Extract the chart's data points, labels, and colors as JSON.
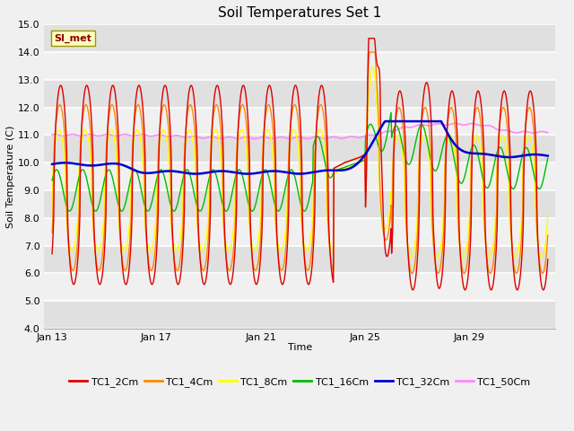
{
  "title": "Soil Temperatures Set 1",
  "xlabel": "Time",
  "ylabel": "Soil Temperature (C)",
  "ylim": [
    4.0,
    15.0
  ],
  "yticks": [
    4.0,
    5.0,
    6.0,
    7.0,
    8.0,
    9.0,
    10.0,
    11.0,
    12.0,
    13.0,
    14.0,
    15.0
  ],
  "bg_color": "#f0f0f0",
  "plot_bg_color": "#f0f0f0",
  "series_colors": {
    "TC1_2Cm": "#dd0000",
    "TC1_4Cm": "#ff8800",
    "TC1_8Cm": "#ffff00",
    "TC1_16Cm": "#00bb00",
    "TC1_32Cm": "#0000cc",
    "TC1_50Cm": "#ff88ff"
  },
  "legend_label": "SI_met",
  "xtick_labels": [
    "Jan 13",
    "Jan 17",
    "Jan 21",
    "Jan 25",
    "Jan 29"
  ],
  "xtick_days": [
    0,
    4,
    8,
    12,
    16
  ],
  "n_days": 19
}
